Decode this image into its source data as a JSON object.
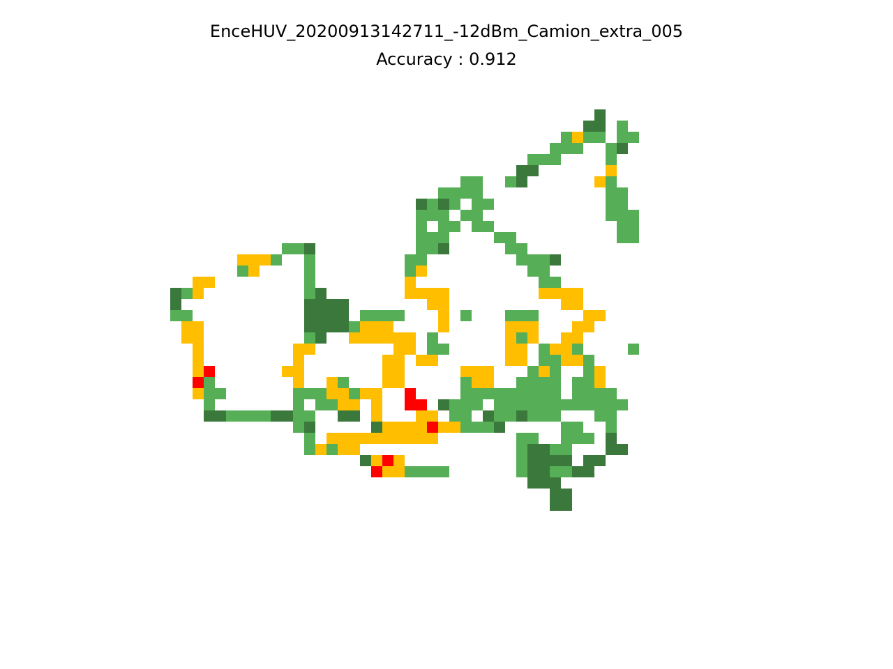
{
  "chart_data": {
    "type": "heatmap",
    "title": "EnceHUV_20200913142711_-12dBm_Camion_extra_005",
    "subtitle": "Accuracy : 0.912",
    "legend": "none",
    "grid": false,
    "colors": {
      "D": "#3b783c",
      "G": "#56ae57",
      "Y": "#ffbf00",
      "R": "#ff0000"
    },
    "rows": [
      "......................................D...",
      ".....................................DD.G..",
      "...................................GYGG.GG",
      "..................................GGG..GD.",
      "................................GGG....G..",
      "...............................DD......Y..",
      "..........................GG..GD......YG..",
      "........................GGGG...........GG.",
      "......................DGDG.GG..........GG.",
      "......................GGG.GG...........GGG",
      "......................G.GG.GG...........GG",
      "......................GGG....GG.........GG",
      "..........GGD.........GGD.....GG..........",
      "......YYYG..G........GG........GGGD.......",
      "......GY....G........GY.........GG........",
      "..YY........G........Y...........GG.......",
      "DGY.........GD.......YYYY........YYYY.....",
      "D...........DDDD.......YY..........YY.....",
      "GG..........DDDD.GGGG...Y.G...GGG....YY...",
      ".YY.........DDDDGYYY....Y.....YYY...YY....",
      ".YY.........GD..YYYYYY.G......YGY..YY.....",
      "..Y........YY.......YY.GG.....YY.GYYG....G",
      "..Y........Y.......YY.YY......YY.GGYYG....",
      "..YR......YY.......YY.....YYY...GYG..GY...",
      "..RG.......Y..YG...YY.....GYY..GGGG.GGY...",
      "..YGG......GGGYYGYY..R....GGGGGGGGG.GGGG..",
      "...G.......G.GGYY.Y..RR.DGGG.GGGGGGGGGGGG.",
      "...DDGGGGDDGG..DD.Y...YY.GG.DGGDGGG...GG..",
      "...........GD.....DYYYYRYYGGGD.....GG..G..",
      "............G.YYYYYYYYYY.......GG..GGG.D..",
      "............GYGYY..............GDDGG...DD.",
      ".................DYRY..........GDDDD.DD...",
      "..................RYYGGGG......GDDGGDD....",
      "................................DDD.......",
      "..................................DD......",
      "..................................DD......"
    ]
  }
}
